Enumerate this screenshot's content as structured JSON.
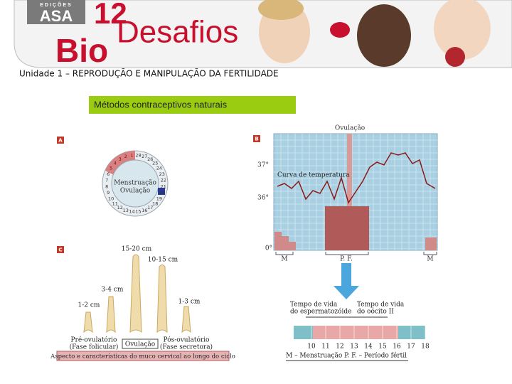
{
  "header": {
    "publisher": "EDIÇÕES",
    "brand": "ASA",
    "grade": "12",
    "title_bio": "Bio",
    "title_rest": "Desafios"
  },
  "unit": "Unidade 1 – REPRODUÇÃO E MANIPULAÇÃO DA FERTILIDADE",
  "section_title": "Métodos contraceptivos naturais",
  "panel_a": {
    "label": "A",
    "days": [
      "1",
      "2",
      "3",
      "4",
      "5",
      "6",
      "7",
      "8",
      "9",
      "10",
      "11",
      "12",
      "13",
      "14",
      "15",
      "16",
      "17",
      "18",
      "19",
      "20",
      "21",
      "22",
      "23",
      "24",
      "25",
      "26",
      "27",
      "28"
    ],
    "menstruation": "Menstruação",
    "ovulation": "Ovulação"
  },
  "panel_b": {
    "label": "B",
    "ovulation": "Ovulação",
    "temp_high": "37°",
    "temp_low": "36°",
    "temp_zero": "0°",
    "curve_label": "Curva de temperatura",
    "phases": [
      "M",
      "P. F.",
      "M"
    ],
    "sperm_life": [
      "Tempo de vida",
      "do espermatozóide"
    ],
    "oocyte_life": [
      "Tempo de vida",
      "do oócito II"
    ],
    "days": [
      "10",
      "11",
      "12",
      "13",
      "14",
      "15",
      "16",
      "17",
      "18"
    ],
    "legend": "M – Menstruação   P. F. – Período fértil"
  },
  "panel_c": {
    "label": "C",
    "lengths": [
      "1-2 cm",
      "3-4 cm",
      "15-20 cm",
      "10-15 cm",
      "1-3 cm"
    ],
    "pre": [
      "Pré-ovulatório",
      "(Fase folicular)"
    ],
    "ovulation": "Ovulação",
    "post": [
      "Pós-ovulatório",
      "(Fase secretora)"
    ],
    "caption": "Aspecto e características do muco cervical ao longo do ciclo"
  }
}
